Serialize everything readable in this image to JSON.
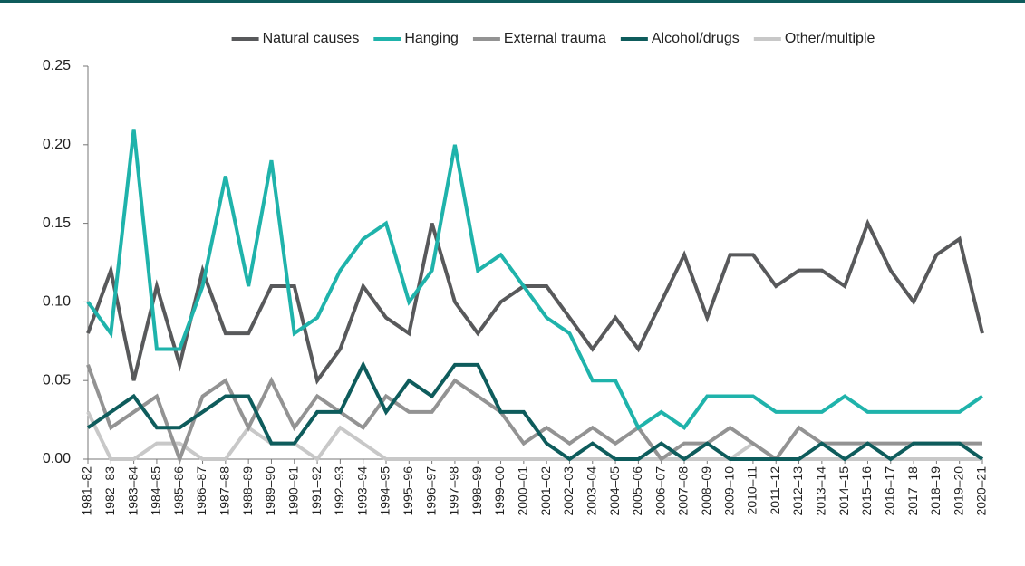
{
  "chart_data": {
    "type": "line",
    "categories": [
      "1981–82",
      "1982–83",
      "1983–84",
      "1984–85",
      "1985–86",
      "1986–87",
      "1987–88",
      "1988–89",
      "1989–90",
      "1990–91",
      "1991–92",
      "1992–93",
      "1993–94",
      "1994–95",
      "1995–96",
      "1996–97",
      "1997–98",
      "1998–99",
      "1999–00",
      "2000–01",
      "2001–02",
      "2002–03",
      "2003–04",
      "2004–05",
      "2005–06",
      "2006–07",
      "2007–08",
      "2008–09",
      "2009–10",
      "2010–11",
      "2011–12",
      "2012–13",
      "2013–14",
      "2014–15",
      "2015–16",
      "2016–17",
      "2017–18",
      "2018–19",
      "2019–20",
      "2020–21"
    ],
    "series": [
      {
        "name": "Natural causes",
        "color": "#58595b",
        "values": [
          0.08,
          0.12,
          0.05,
          0.11,
          0.06,
          0.12,
          0.08,
          0.08,
          0.11,
          0.11,
          0.05,
          0.07,
          0.11,
          0.09,
          0.08,
          0.15,
          0.1,
          0.08,
          0.1,
          0.11,
          0.11,
          0.09,
          0.07,
          0.09,
          0.07,
          0.1,
          0.13,
          0.09,
          0.13,
          0.13,
          0.11,
          0.12,
          0.12,
          0.11,
          0.15,
          0.12,
          0.1,
          0.13,
          0.14,
          0.08
        ]
      },
      {
        "name": "Hanging",
        "color": "#1fb3ab",
        "values": [
          0.1,
          0.08,
          0.21,
          0.07,
          0.07,
          0.11,
          0.18,
          0.11,
          0.19,
          0.08,
          0.09,
          0.12,
          0.14,
          0.15,
          0.1,
          0.12,
          0.2,
          0.12,
          0.13,
          0.11,
          0.09,
          0.08,
          0.05,
          0.05,
          0.02,
          0.03,
          0.02,
          0.04,
          0.04,
          0.04,
          0.03,
          0.03,
          0.03,
          0.04,
          0.03,
          0.03,
          0.03,
          0.03,
          0.03,
          0.04
        ]
      },
      {
        "name": "External trauma",
        "color": "#939393",
        "values": [
          0.06,
          0.02,
          0.03,
          0.04,
          0.0,
          0.04,
          0.05,
          0.02,
          0.05,
          0.02,
          0.04,
          0.03,
          0.02,
          0.04,
          0.03,
          0.03,
          0.05,
          0.04,
          0.03,
          0.01,
          0.02,
          0.01,
          0.02,
          0.01,
          0.02,
          0.0,
          0.01,
          0.01,
          0.02,
          0.01,
          0.0,
          0.02,
          0.01,
          0.01,
          0.01,
          0.01,
          0.01,
          0.01,
          0.01,
          0.01
        ]
      },
      {
        "name": "Alcohol/drugs",
        "color": "#0e5c5c",
        "values": [
          0.02,
          0.03,
          0.04,
          0.02,
          0.02,
          0.03,
          0.04,
          0.04,
          0.01,
          0.01,
          0.03,
          0.03,
          0.06,
          0.03,
          0.05,
          0.04,
          0.06,
          0.06,
          0.03,
          0.03,
          0.01,
          0.0,
          0.01,
          0.0,
          0.0,
          0.01,
          0.0,
          0.01,
          0.0,
          0.0,
          0.0,
          0.0,
          0.01,
          0.0,
          0.01,
          0.0,
          0.01,
          0.01,
          0.01,
          0.0
        ]
      },
      {
        "name": "Other/multiple",
        "color": "#c8c8c8",
        "values": [
          0.03,
          0.0,
          0.0,
          0.01,
          0.01,
          0.0,
          0.0,
          0.02,
          0.01,
          0.01,
          0.0,
          0.02,
          0.01,
          0.0,
          0.0,
          0.0,
          0.0,
          0.0,
          0.0,
          0.0,
          0.0,
          0.0,
          0.0,
          0.0,
          0.0,
          0.0,
          0.0,
          0.0,
          0.0,
          0.01,
          0.0,
          0.0,
          0.0,
          0.0,
          0.0,
          0.0,
          0.0,
          0.0,
          0.0,
          0.0
        ]
      }
    ],
    "ylim": [
      0,
      0.25
    ],
    "yticks": [
      {
        "value": 0,
        "label": "0.00"
      },
      {
        "value": 0.05,
        "label": "0.05"
      },
      {
        "value": 0.1,
        "label": "0.10"
      },
      {
        "value": 0.15,
        "label": "0.15"
      },
      {
        "value": 0.2,
        "label": "0.20"
      },
      {
        "value": 0.25,
        "label": "0.25"
      }
    ],
    "legend": "top"
  }
}
